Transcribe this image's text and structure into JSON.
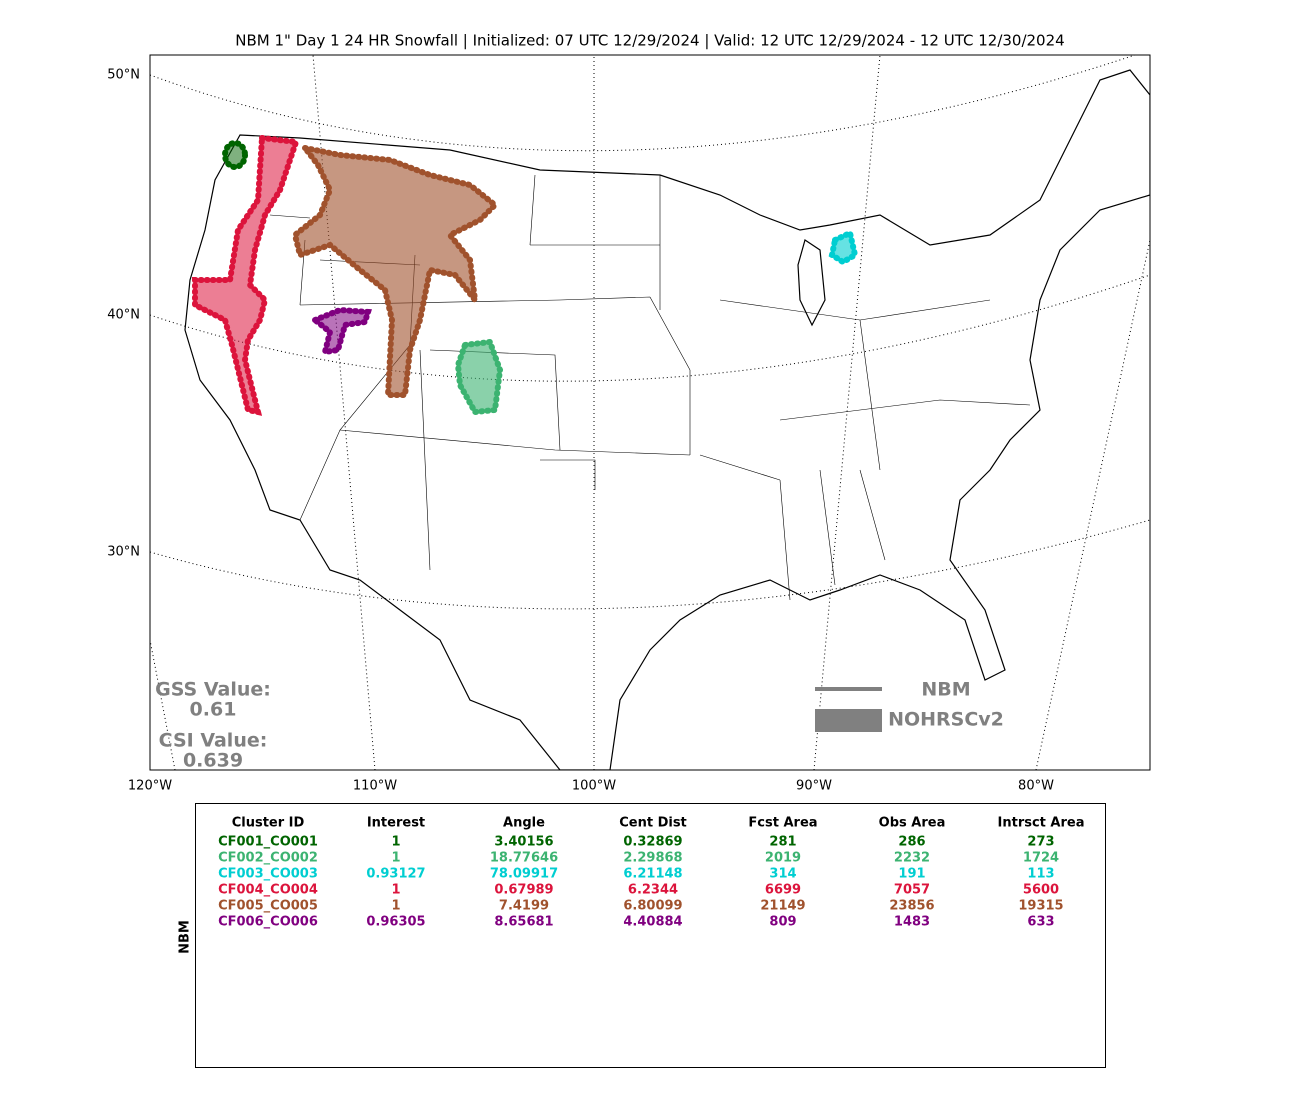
{
  "map": {
    "title": "NBM 1\" Day 1 24 HR Snowfall | Initialized: 07 UTC 12/29/2024 | Valid: 12 UTC 12/29/2024 - 12 UTC 12/30/2024",
    "lat_labels": [
      "50°N",
      "40°N",
      "30°N"
    ],
    "lon_labels": [
      "120°W",
      "110°W",
      "100°W",
      "90°W",
      "80°W"
    ],
    "gss_label": "GSS Value:",
    "gss_value": 0.61,
    "csi_label": "CSI Value:",
    "csi_value": 0.639,
    "legend": [
      "NBM",
      "NOHRSCv2"
    ]
  },
  "table": {
    "side_label": "NBM",
    "header": [
      "Cluster ID",
      "Interest",
      "Angle",
      "Cent Dist",
      "Fcst Area",
      "Obs Area",
      "Intrsct Area"
    ],
    "rows": [
      {
        "color": "#006400",
        "cells": [
          "CF001_CO001",
          1,
          3.40156,
          0.32869,
          281,
          286,
          273
        ]
      },
      {
        "color": "#3cb371",
        "cells": [
          "CF002_CO002",
          1,
          18.77646,
          2.29868,
          2019,
          2232,
          1724
        ]
      },
      {
        "color": "#00ced1",
        "cells": [
          "CF003_CO003",
          0.93127,
          78.09917,
          6.21148,
          314,
          191,
          113
        ]
      },
      {
        "color": "#dc143c",
        "cells": [
          "CF004_CO004",
          1,
          0.67989,
          6.2344,
          6699,
          7057,
          5600
        ]
      },
      {
        "color": "#a0522d",
        "cells": [
          "CF005_CO005",
          1,
          7.4199,
          6.80099,
          21149,
          23856,
          19315
        ]
      },
      {
        "color": "#800080",
        "cells": [
          "CF006_CO006",
          0.96305,
          8.65681,
          4.40884,
          809,
          1483,
          633
        ]
      }
    ]
  }
}
